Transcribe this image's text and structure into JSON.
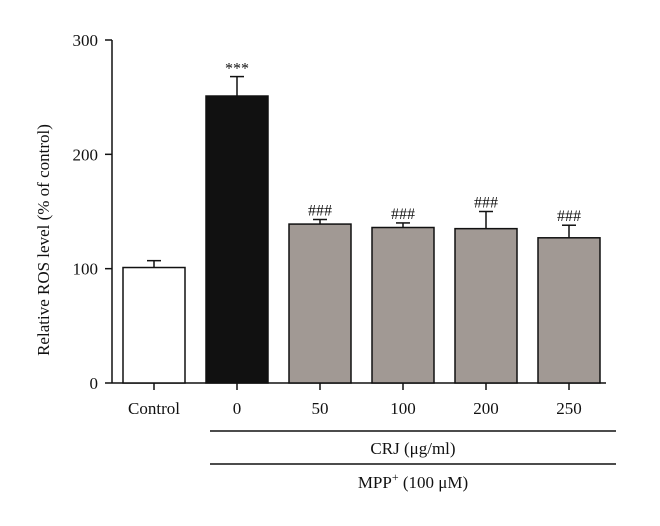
{
  "chart_data": {
    "type": "bar",
    "categories": [
      "Control",
      "0",
      "50",
      "100",
      "200",
      "250"
    ],
    "values": [
      101,
      251,
      139,
      136,
      135,
      127
    ],
    "errors": [
      6,
      17,
      4,
      4,
      15,
      11
    ],
    "annotations": [
      "",
      "***",
      "###",
      "###",
      "###",
      "###"
    ],
    "bar_colors": [
      "#ffffff",
      "#111111",
      "#a19994",
      "#a19994",
      "#a19994",
      "#a19994"
    ],
    "ylabel": "Relative ROS level (% of control)",
    "xlabel": "",
    "ylim": [
      0,
      300
    ],
    "yticks": [
      0,
      100,
      200,
      300
    ],
    "grid": false,
    "group_labels": {
      "crj": "CRJ (μg/ml)",
      "mpp_prefix": "MPP",
      "mpp_sup": "+",
      "mpp_suffix": " (100 μM)"
    }
  }
}
